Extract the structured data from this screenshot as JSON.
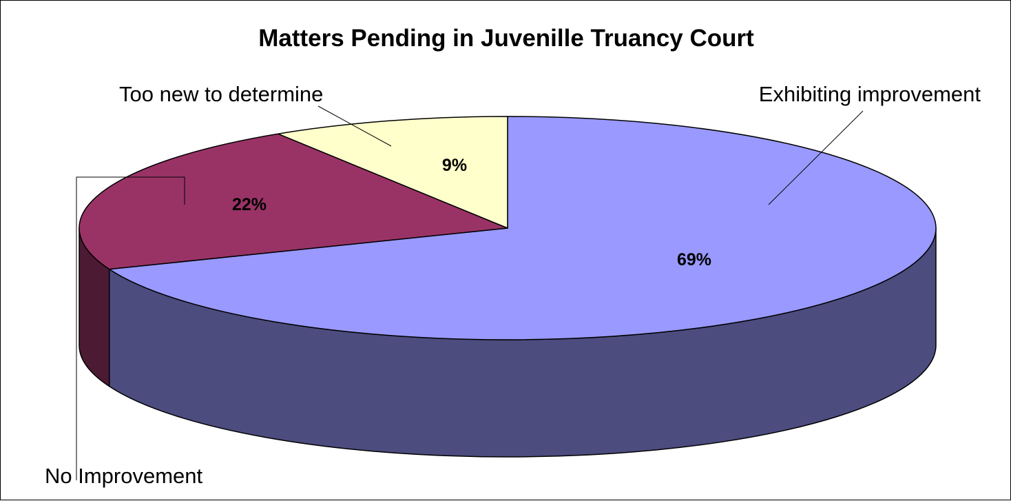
{
  "chart_data": {
    "type": "pie",
    "style": "3d",
    "title": "Matters Pending in Juvenille Truancy Court",
    "legend": "none",
    "slices": [
      {
        "label": "Exhibiting improvement",
        "value": 69,
        "value_label": "69%",
        "color": "#9999ff",
        "side_color": "#4c4c7f"
      },
      {
        "label": "No Improvement",
        "value": 22,
        "value_label": "22%",
        "color": "#993366",
        "side_color": "#4d1a33"
      },
      {
        "label": "Too new to determine",
        "value": 9,
        "value_label": "9%",
        "color": "#ffffcc",
        "side_color": "#808066"
      }
    ]
  }
}
